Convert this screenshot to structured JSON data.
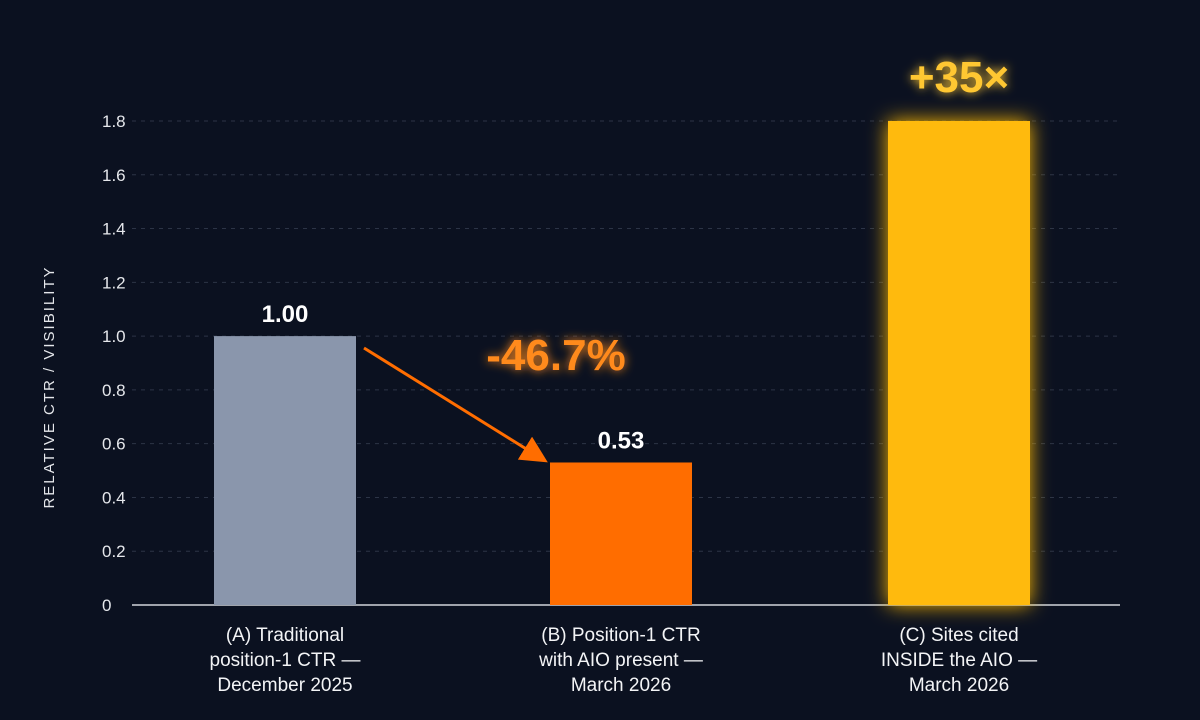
{
  "chart_data": {
    "type": "bar",
    "title": "",
    "xlabel": "",
    "ylabel": "RELATIVE CTR / VISIBILITY",
    "ylim": [
      0,
      1.8
    ],
    "yticks": [
      "0",
      "0.2",
      "0.4",
      "0.6",
      "0.8",
      "1.0",
      "1.2",
      "1.4",
      "1.6",
      "1.8"
    ],
    "grid": true,
    "categories": [
      [
        "(A) Traditional",
        "position-1 CTR —",
        "December 2025"
      ],
      [
        "(B) Position-1 CTR",
        "with AIO present —",
        "March 2026"
      ],
      [
        "(C) Sites cited",
        "INSIDE the AIO —",
        "March 2026"
      ]
    ],
    "values": [
      1.0,
      0.53,
      1.8
    ],
    "data_labels": [
      "1.00",
      "0.53",
      ""
    ],
    "colors": [
      "#8a96ac",
      "#ff6d00",
      "#ffba0a"
    ],
    "annotations": [
      {
        "text": "-46.7%",
        "color": "#ff8a1c",
        "between": [
          0,
          1
        ]
      },
      {
        "text": "+35×",
        "color": "#ffc733",
        "above": 2
      }
    ]
  }
}
